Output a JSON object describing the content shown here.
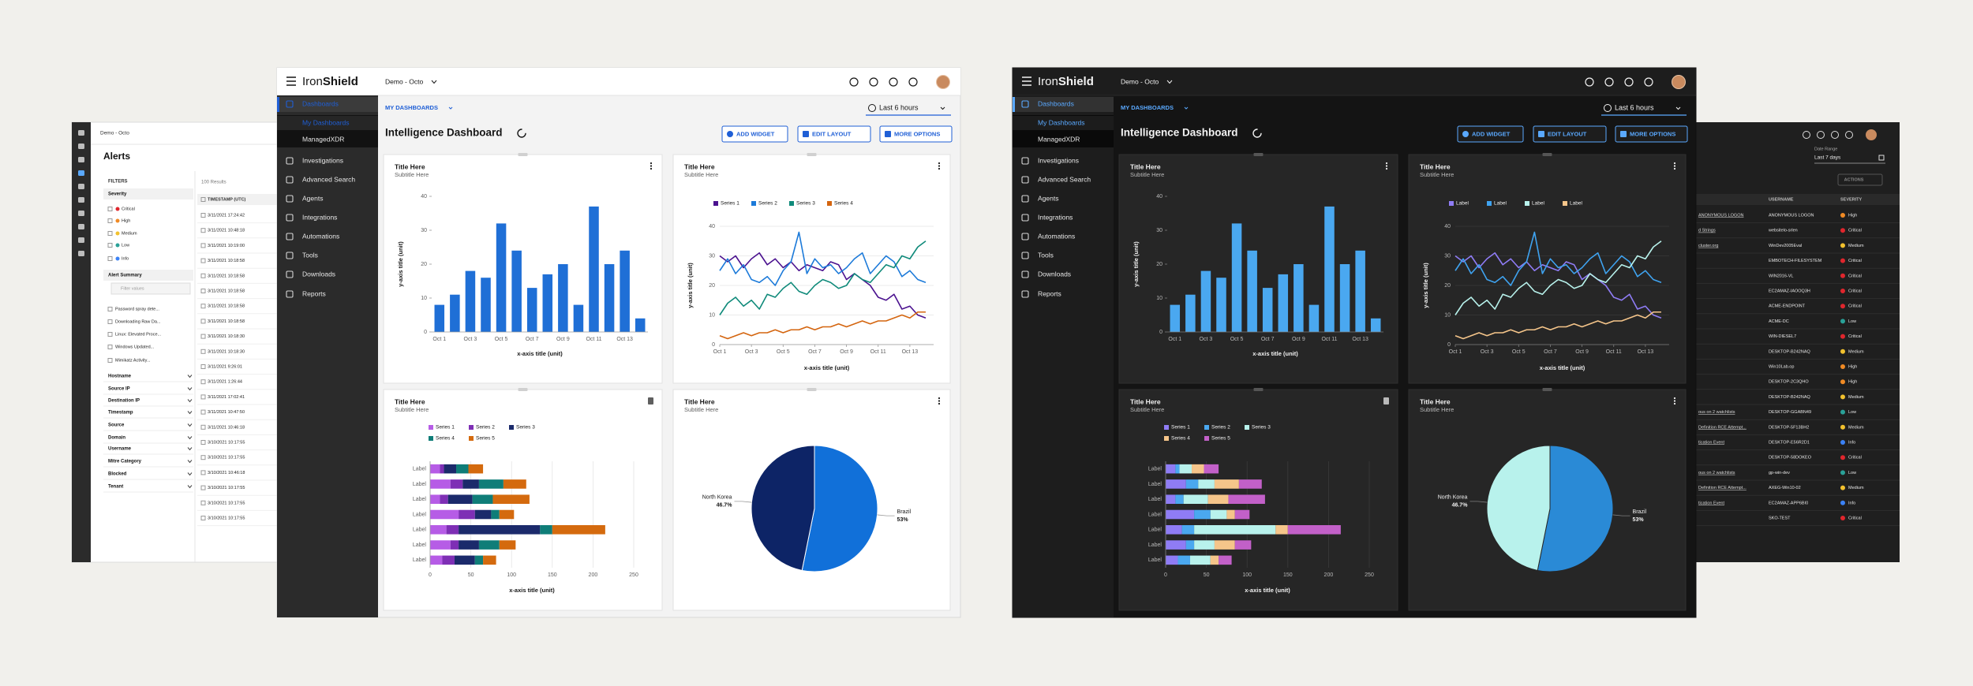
{
  "app": {
    "brand_iron": "Iron",
    "brand_shield": "Shield",
    "org": "Demo - Octo",
    "nav": [
      "Dashboards",
      "Investigations",
      "Advanced Search",
      "Agents",
      "Integrations",
      "Automations",
      "Tools",
      "Downloads",
      "Reports"
    ],
    "sub_nav": [
      "My Dashboards",
      "ManagedXDR"
    ],
    "breadcrumb": "MY DASHBOARDS",
    "time_range": "Last 6 hours",
    "title": "Intelligence Dashboard",
    "buttons": [
      "ADD WIDGET",
      "EDIT LAYOUT",
      "MORE OPTIONS"
    ]
  },
  "severity_colors": {
    "Critical": "#e0262d",
    "High": "#f08a24",
    "Medium": "#f2c12e",
    "Low": "#2aa198",
    "Info": "#3b82f6"
  },
  "alerts_panel": {
    "org": "Demo - Octo",
    "title": "Alerts",
    "filters_label": "FILTERS",
    "severity_label": "Severity",
    "severity": [
      "Critical",
      "High",
      "Medium",
      "Low",
      "Info"
    ],
    "summary_label": "Alert Summary",
    "search_placeholder": "Filter values",
    "summary": [
      "Password spray dete...",
      "Downloading Raw Da...",
      "Linux: Elevated Proce...",
      "Windows Updated...",
      "Mimikatz Activity..."
    ],
    "groups": [
      "Hostname",
      "Source IP",
      "Destination IP",
      "Timestamp",
      "Source",
      "Domain",
      "Username",
      "Mitre Category",
      "Blocked",
      "Tenant"
    ],
    "results": "100 Results",
    "column": "TIMESTAMP (UTC)",
    "rows": [
      "3/11/2021 17:24:42",
      "3/11/2021 10:48:18",
      "3/11/2021 10:19:00",
      "3/11/2021 10:18:58",
      "3/11/2021 10:18:58",
      "3/11/2021 10:18:58",
      "3/11/2021 10:18:58",
      "3/11/2021 10:18:58",
      "3/11/2021 10:18:30",
      "3/11/2021 10:18:30",
      "3/11/2021 9:26:01",
      "3/11/2021 1:26:44",
      "3/11/2021 17:02:41",
      "3/11/2021 10:47:50",
      "3/11/2021 10:46:18",
      "3/10/2021 10:17:55",
      "3/10/2021 10:17:55",
      "3/10/2021 10:46:18",
      "3/10/2021 10:17:55",
      "3/10/2021 10:17:55",
      "3/10/2021 10:17:55"
    ]
  },
  "table_panel": {
    "date_label": "Date Range",
    "date_value": "Last 7 days",
    "actions": "ACTIONS",
    "columns": [
      "USERNAME",
      "SEVERITY"
    ],
    "rows": [
      {
        "alert": "ANONYMOUS LOGON",
        "user": "ANONYMOUS LOGON",
        "severity": "High"
      },
      {
        "alert": "d Strings",
        "user": "websitelo-srlen",
        "severity": "Critical"
      },
      {
        "alert": "cluster.org",
        "user": "WinDev2005Eval",
        "severity": "Medium"
      },
      {
        "user": "EMBOTECH-FILESYSTEM",
        "severity": "Critical"
      },
      {
        "user": "WIN2016-VL",
        "severity": "Critical"
      },
      {
        "user": "EC2AMAZ-IAOOQ3H",
        "severity": "Critical"
      },
      {
        "user": "ACME-ENDPOINT",
        "severity": "Critical"
      },
      {
        "user": "ACME-DC",
        "severity": "Low"
      },
      {
        "user": "WIN-DIESEL7",
        "severity": "Critical"
      },
      {
        "user": "DESKTOP-B242NAQ",
        "severity": "Medium"
      },
      {
        "user": "Win10Lab.op",
        "severity": "High"
      },
      {
        "user": "DESKTOP-2C3QHO",
        "severity": "High"
      },
      {
        "user": "DESKTOP-B242NAQ",
        "severity": "Medium"
      },
      {
        "alert": "ous on 2 watchlists",
        "user": "DESKTOP-GGABN49",
        "severity": "Low"
      },
      {
        "alert": "Definition RCE Attempt...",
        "user": "DESKTOP-5F13BH2",
        "severity": "Medium"
      },
      {
        "alert": "tication Event",
        "user": "DESKTOP-E56R2D1",
        "severity": "Info"
      },
      {
        "user": "DESKTOP-58DOKEO",
        "severity": "Critical"
      },
      {
        "alert": "ous on 2 watchlists",
        "user": "gp-win-dev",
        "severity": "Low"
      },
      {
        "alert": "Definition RCE Attempt...",
        "user": "AXEG-Win10-02",
        "severity": "Medium"
      },
      {
        "alert": "tication Event",
        "user": "EC2AMAZ-APP6BI0",
        "severity": "Info"
      },
      {
        "user": "SKO-TEST",
        "severity": "Critical"
      }
    ]
  },
  "widgets": {
    "bar": {
      "type": "bar",
      "title": "Title Here",
      "subtitle": "Subtitle Here",
      "categories": [
        "Oct 1",
        null,
        "Oct 3",
        null,
        "Oct 5",
        null,
        "Oct 7",
        null,
        "Oct 9",
        null,
        "Oct 11",
        null,
        "Oct 13",
        null
      ],
      "values": [
        8,
        11,
        18,
        16,
        32,
        24,
        13,
        17,
        20,
        8,
        37,
        20,
        24,
        4
      ],
      "color": "#1f6fd6",
      "dark_color": "#4aa8f0",
      "ylim": [
        0,
        40
      ],
      "yticks": [
        0,
        10,
        20,
        30,
        40
      ],
      "grid": false,
      "xlabel": "x-axis title (unit)",
      "ylabel": "y-axis title (unit)"
    },
    "line": {
      "type": "line",
      "title": "Title Here",
      "subtitle": "Subtitle Here",
      "x": [
        1,
        1.5,
        2,
        2.5,
        3,
        3.5,
        4,
        4.5,
        5,
        5.5,
        6,
        6.5,
        7,
        7.5,
        8,
        8.5,
        9,
        9.5,
        10,
        10.5,
        11,
        11.5,
        12,
        12.5,
        13,
        13.5,
        14
      ],
      "series": [
        {
          "name": "Series 1",
          "dark_name": "Label",
          "color": "#4b128f",
          "dark_color": "#8f7cf5",
          "values": [
            30,
            28,
            30,
            26,
            29,
            31,
            27,
            29,
            26,
            28,
            25,
            27,
            26,
            25,
            28,
            27,
            22,
            24,
            22,
            20,
            16,
            15,
            17,
            12,
            13,
            10,
            9
          ]
        },
        {
          "name": "Series 2",
          "dark_name": "Label",
          "color": "#1c7ad9",
          "dark_color": "#3fa3f0",
          "values": [
            25,
            29,
            24,
            27,
            22,
            21,
            23,
            20,
            25,
            28,
            38,
            24,
            29,
            26,
            27,
            24,
            26,
            29,
            31,
            24,
            27,
            30,
            28,
            23,
            25,
            22,
            21
          ]
        },
        {
          "name": "Series 3",
          "dark_name": "Label",
          "color": "#0f8a7a",
          "dark_color": "#b8f2ec",
          "values": [
            10,
            14,
            16,
            13,
            15,
            12,
            17,
            16,
            19,
            21,
            18,
            17,
            20,
            22,
            21,
            19,
            20,
            24,
            22,
            21,
            24,
            27,
            26,
            30,
            29,
            33,
            35
          ]
        },
        {
          "name": "Series 4",
          "dark_name": "Label",
          "color": "#d4650f",
          "dark_color": "#f5c58a",
          "values": [
            3,
            2,
            3,
            4,
            3,
            4,
            4,
            5,
            4,
            5,
            5,
            6,
            5,
            6,
            6,
            7,
            6,
            7,
            8,
            7,
            8,
            8,
            9,
            10,
            9,
            11,
            11
          ]
        }
      ],
      "xlim": [
        1,
        14.5
      ],
      "xticks": [
        {
          "value": 1,
          "label": "Oct 1"
        },
        {
          "value": 3,
          "label": "Oct 3"
        },
        {
          "value": 5,
          "label": "Oct 5"
        },
        {
          "value": 7,
          "label": "Oct 7"
        },
        {
          "value": 9,
          "label": "Oct 9"
        },
        {
          "value": 11,
          "label": "Oct 11"
        },
        {
          "value": 13,
          "label": "Oct 13"
        }
      ],
      "ylim": [
        0,
        40
      ],
      "yticks": [
        0,
        10,
        20,
        30,
        40
      ],
      "grid": true,
      "xlabel": "x-axis title (unit)",
      "ylabel": "y-axis title (unit)"
    },
    "stacked": {
      "type": "hbar_stacked",
      "title": "Title Here",
      "subtitle": "Subtitle Here",
      "categories": [
        "Label",
        "Label",
        "Label",
        "Label",
        "Label",
        "Label",
        "Label"
      ],
      "series": [
        {
          "name": "Series 1",
          "color": "#b65ce6",
          "dark_color": "#8f7cf5",
          "values": [
            12,
            25,
            12,
            35,
            20,
            25,
            15
          ]
        },
        {
          "name": "Series 2",
          "color": "#7e2fb5",
          "dark_color": "#4aa8f0",
          "values": [
            5,
            15,
            10,
            20,
            15,
            10,
            15
          ]
        },
        {
          "name": "Series 3",
          "color": "#1b2a6b",
          "dark_color": "#b8f2ec",
          "values": [
            15,
            20,
            30,
            20,
            100,
            25,
            25
          ]
        },
        {
          "name": "Series 4",
          "color": "#0f7d78",
          "dark_color": "#f5c58a",
          "values": [
            15,
            30,
            25,
            10,
            15,
            25,
            10
          ]
        },
        {
          "name": "Series 5",
          "color": "#d46a0e",
          "dark_color": "#c260c8",
          "values": [
            18,
            28,
            45,
            18,
            65,
            20,
            16
          ]
        }
      ],
      "xlim": [
        0,
        250
      ],
      "xticks": [
        0,
        50,
        100,
        150,
        200,
        250
      ],
      "grid": true,
      "xlabel": "x-axis title (unit)"
    },
    "pie": {
      "type": "pie",
      "title": "Title Here",
      "subtitle": "Subtitle Here",
      "categories": [
        "Brazil",
        "North Korea"
      ],
      "values": [
        53,
        46.7
      ],
      "value_labels": [
        "53%",
        "46.7%"
      ],
      "colors": [
        "#1170d9",
        "#0d2466"
      ],
      "dark_colors": [
        "#2a8ad6",
        "#b8f2ec"
      ]
    }
  }
}
